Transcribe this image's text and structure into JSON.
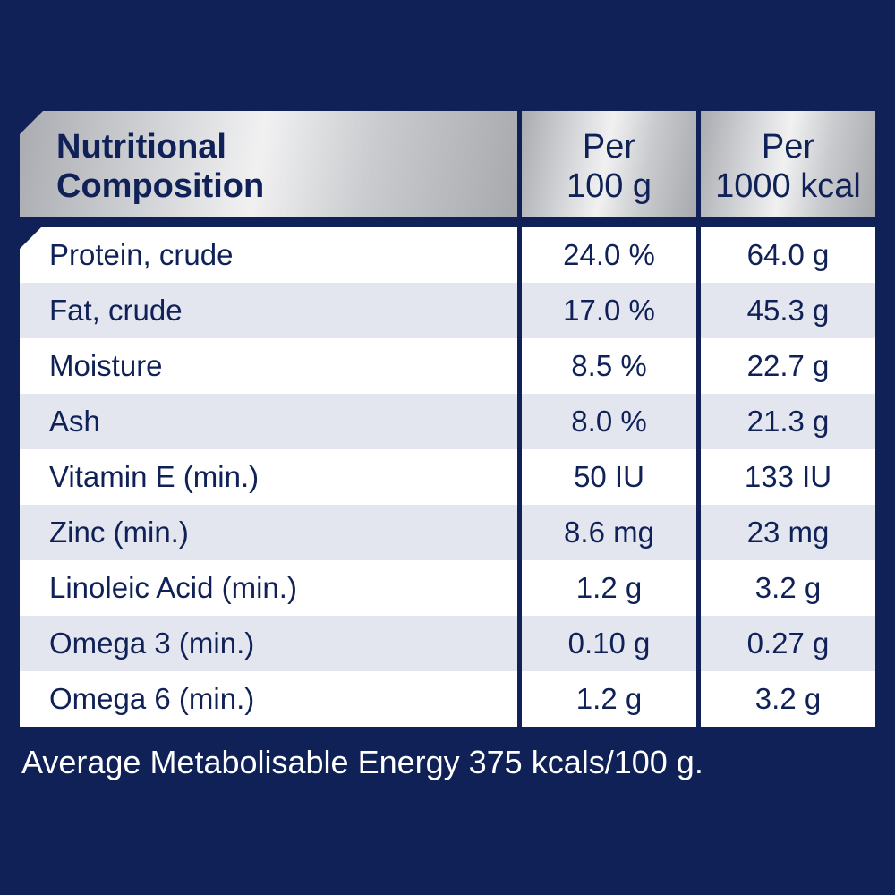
{
  "table": {
    "header": {
      "title_line1": "Nutritional",
      "title_line2": "Composition",
      "col2_line1": "Per",
      "col2_line2": "100 g",
      "col3_line1": "Per",
      "col3_line2": "1000 kcal"
    },
    "rows": [
      {
        "nutrient": "Protein, crude",
        "per_100g": "24.0 %",
        "per_1000kcal": "64.0 g"
      },
      {
        "nutrient": "Fat, crude",
        "per_100g": "17.0 %",
        "per_1000kcal": "45.3 g"
      },
      {
        "nutrient": "Moisture",
        "per_100g": "8.5 %",
        "per_1000kcal": "22.7 g"
      },
      {
        "nutrient": "Ash",
        "per_100g": "8.0 %",
        "per_1000kcal": "21.3 g"
      },
      {
        "nutrient": "Vitamin E (min.)",
        "per_100g": "50 IU",
        "per_1000kcal": "133 IU"
      },
      {
        "nutrient": "Zinc (min.)",
        "per_100g": "8.6 mg",
        "per_1000kcal": "23 mg"
      },
      {
        "nutrient": "Linoleic Acid (min.)",
        "per_100g": "1.2 g",
        "per_1000kcal": "3.2 g"
      },
      {
        "nutrient": "Omega 3 (min.)",
        "per_100g": "0.10 g",
        "per_1000kcal": "0.27 g"
      },
      {
        "nutrient": "Omega 6 (min.)",
        "per_100g": "1.2 g",
        "per_1000kcal": "3.2 g"
      }
    ]
  },
  "footer": "Average Metabolisable Energy 375 kcals/100 g.",
  "colors": {
    "background": "#0f2157",
    "text": "#0f2157",
    "row_alt": "#e3e6ef",
    "header_silver": "#c9cbce"
  }
}
